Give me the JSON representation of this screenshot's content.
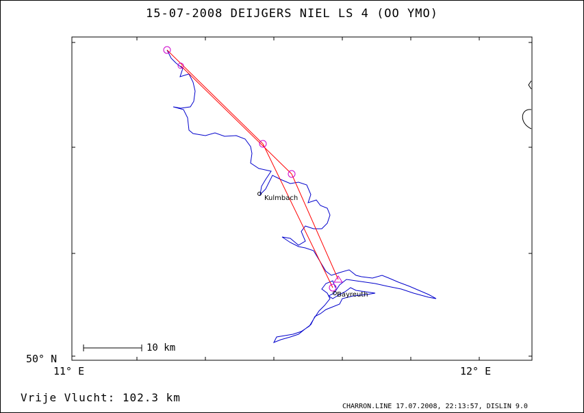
{
  "title": "15-07-2008   DEIJGERS NIEL   LS 4 (OO YMO)",
  "axes": {
    "lat_label": "50° N",
    "lon_left_label": "11° E",
    "lon_right_label": "12° E"
  },
  "scale_bar": {
    "label": "10 km"
  },
  "places": [
    {
      "name": "Kulmbach"
    },
    {
      "name": "Bayreuth"
    }
  ],
  "summary": {
    "distance": "Vrije Vlucht:  102.3 km"
  },
  "footer": "CHARRON.LINE 17.07.2008, 22:13:57, DISLIN 9.0",
  "colors": {
    "track": "#0000cc",
    "task_line": "#ff0000",
    "turnpoint": "#cc00cc",
    "frame": "#000000"
  }
}
